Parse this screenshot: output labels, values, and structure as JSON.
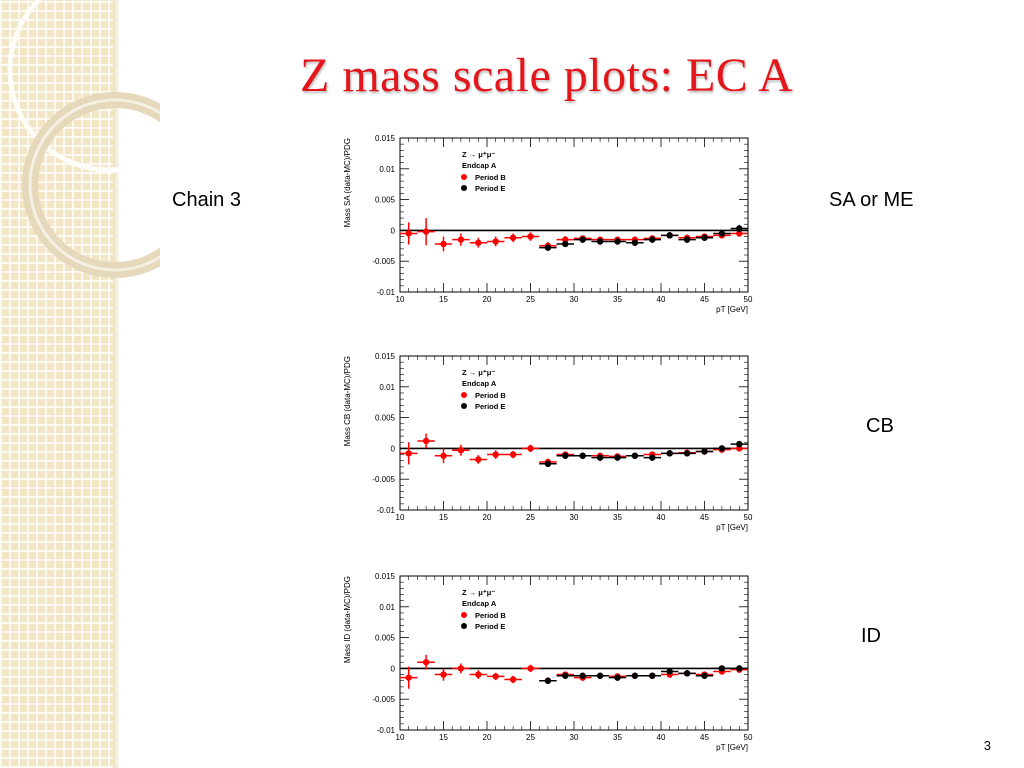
{
  "slide": {
    "title": "Z mass scale plots: EC A",
    "page_number": "3",
    "labels": {
      "chain": "Chain 3",
      "sa": "SA or ME",
      "cb": "CB",
      "id": "ID"
    }
  },
  "colors": {
    "title": "#e3161b",
    "period_b": "#ff0000",
    "period_e": "#000000",
    "sidebar": "#f3e6c6"
  },
  "chart_data": [
    {
      "type": "scatter",
      "ylabel": "Mass SA (data-MC)/PDG",
      "xlabel": "pT [GeV]",
      "xlim": [
        10,
        50
      ],
      "ylim": [
        -0.01,
        0.015
      ],
      "xticks": [
        "10",
        "15",
        "20",
        "25",
        "30",
        "35",
        "40",
        "45",
        "50"
      ],
      "yticks": [
        "-0.01",
        "-0.005",
        "0",
        "0.005",
        "0.01",
        "0.015"
      ],
      "legend": {
        "lines": [
          "Z → μ⁺μ⁻",
          "Endcap A"
        ],
        "placement": "top-left"
      },
      "series": [
        {
          "name": "Period B",
          "color": "#ff0000",
          "x": [
            11,
            13,
            15,
            17,
            19,
            21,
            23,
            25,
            27,
            29,
            31,
            33,
            35,
            37,
            39,
            41,
            43,
            45,
            47,
            49
          ],
          "y": [
            -0.0005,
            -0.0002,
            -0.0022,
            -0.0015,
            -0.002,
            -0.0018,
            -0.0012,
            -0.001,
            -0.0025,
            -0.0015,
            -0.0013,
            -0.0015,
            -0.0015,
            -0.0015,
            -0.0013,
            -0.0008,
            -0.0012,
            -0.001,
            -0.0008,
            -0.0005
          ],
          "yerr": [
            0.0018,
            0.0022,
            0.0012,
            0.001,
            0.0008,
            0.0008,
            0.0007,
            0.0007,
            0.0006,
            0.0006,
            0.0005,
            0.0005,
            0.0005,
            0.0005,
            0.0005,
            0.0005,
            0.0005,
            0.0005,
            0.0005,
            0.0005
          ]
        },
        {
          "name": "Period E",
          "color": "#000000",
          "x": [
            27,
            29,
            31,
            33,
            35,
            37,
            39,
            41,
            43,
            45,
            47,
            49
          ],
          "y": [
            -0.0028,
            -0.0022,
            -0.0015,
            -0.0018,
            -0.0018,
            -0.002,
            -0.0015,
            -0.0008,
            -0.0015,
            -0.0012,
            -0.0005,
            0.0003
          ],
          "yerr": [
            0.0005,
            0.0005,
            0.0005,
            0.0005,
            0.0005,
            0.0005,
            0.0005,
            0.0005,
            0.0005,
            0.0005,
            0.0005,
            0.0006
          ]
        }
      ]
    },
    {
      "type": "scatter",
      "ylabel": "Mass CB (data-MC)/PDG",
      "xlabel": "pT [GeV]",
      "xlim": [
        10,
        50
      ],
      "ylim": [
        -0.01,
        0.015
      ],
      "xticks": [
        "10",
        "15",
        "20",
        "25",
        "30",
        "35",
        "40",
        "45",
        "50"
      ],
      "yticks": [
        "-0.01",
        "-0.005",
        "0",
        "0.005",
        "0.01",
        "0.015"
      ],
      "legend": {
        "lines": [
          "Z → μ⁺μ⁻",
          "Endcap A"
        ],
        "placement": "top-left"
      },
      "series": [
        {
          "name": "Period B",
          "color": "#ff0000",
          "x": [
            11,
            13,
            15,
            17,
            19,
            21,
            23,
            25,
            27,
            29,
            31,
            33,
            35,
            37,
            39,
            41,
            43,
            45,
            47,
            49
          ],
          "y": [
            -0.0008,
            0.0012,
            -0.0012,
            -0.0003,
            -0.0018,
            -0.001,
            -0.001,
            0.0,
            -0.0022,
            -0.001,
            -0.0012,
            -0.0012,
            -0.0013,
            -0.0012,
            -0.001,
            -0.0008,
            -0.0007,
            -0.0005,
            -0.0002,
            0.0
          ],
          "yerr": [
            0.0018,
            0.0012,
            0.0012,
            0.0009,
            0.0007,
            0.0007,
            0.0006,
            0.0006,
            0.0005,
            0.0005,
            0.0005,
            0.0005,
            0.0005,
            0.0005,
            0.0005,
            0.0005,
            0.0005,
            0.0005,
            0.0005,
            0.0005
          ]
        },
        {
          "name": "Period E",
          "color": "#000000",
          "x": [
            27,
            29,
            31,
            33,
            35,
            37,
            39,
            41,
            43,
            45,
            47,
            49
          ],
          "y": [
            -0.0025,
            -0.0012,
            -0.0012,
            -0.0015,
            -0.0015,
            -0.0012,
            -0.0015,
            -0.0008,
            -0.0008,
            -0.0005,
            0.0,
            0.0007
          ],
          "yerr": [
            0.0005,
            0.0005,
            0.0005,
            0.0005,
            0.0005,
            0.0005,
            0.0005,
            0.0005,
            0.0005,
            0.0005,
            0.0005,
            0.0005
          ]
        }
      ]
    },
    {
      "type": "scatter",
      "ylabel": "Mass ID (data-MC)/PDG",
      "xlabel": "pT [GeV]",
      "xlim": [
        10,
        50
      ],
      "ylim": [
        -0.01,
        0.015
      ],
      "xticks": [
        "10",
        "15",
        "20",
        "25",
        "30",
        "35",
        "40",
        "45",
        "50"
      ],
      "yticks": [
        "-0.01",
        "-0.005",
        "0",
        "0.005",
        "0.01",
        "0.015"
      ],
      "legend": {
        "lines": [
          "Z → μ⁺μ⁻",
          "Endcap A"
        ],
        "placement": "top-left"
      },
      "series": [
        {
          "name": "Period B",
          "color": "#ff0000",
          "x": [
            11,
            13,
            15,
            17,
            19,
            21,
            23,
            25,
            27,
            29,
            31,
            33,
            35,
            37,
            39,
            41,
            43,
            45,
            47,
            49
          ],
          "y": [
            -0.0015,
            0.001,
            -0.001,
            0.0,
            -0.001,
            -0.0013,
            -0.0018,
            0.0,
            -0.002,
            -0.001,
            -0.0015,
            -0.0012,
            -0.0013,
            -0.0012,
            -0.0012,
            -0.001,
            -0.0008,
            -0.001,
            -0.0005,
            -0.0002
          ],
          "yerr": [
            0.0018,
            0.0012,
            0.001,
            0.0008,
            0.0007,
            0.0006,
            0.0006,
            0.0006,
            0.0005,
            0.0005,
            0.0005,
            0.0005,
            0.0005,
            0.0005,
            0.0005,
            0.0005,
            0.0005,
            0.0005,
            0.0005,
            0.0005
          ]
        },
        {
          "name": "Period E",
          "color": "#000000",
          "x": [
            27,
            29,
            31,
            33,
            35,
            37,
            39,
            41,
            43,
            45,
            47,
            49
          ],
          "y": [
            -0.002,
            -0.0012,
            -0.0012,
            -0.0012,
            -0.0015,
            -0.0012,
            -0.0012,
            -0.0005,
            -0.0008,
            -0.0012,
            0.0,
            0.0
          ],
          "yerr": [
            0.0005,
            0.0005,
            0.0005,
            0.0005,
            0.0005,
            0.0005,
            0.0005,
            0.0005,
            0.0005,
            0.0005,
            0.0005,
            0.0005
          ]
        }
      ]
    }
  ]
}
